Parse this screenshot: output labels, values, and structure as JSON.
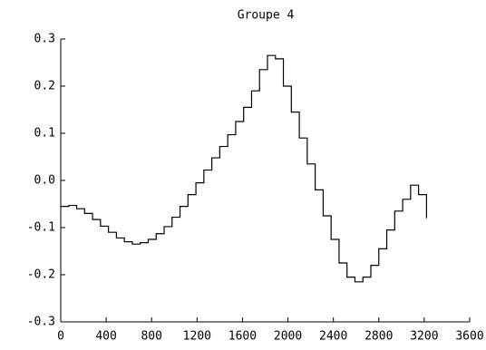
{
  "chart_data": {
    "type": "step",
    "title": "Groupe 4",
    "x": [
      0,
      70,
      140,
      210,
      280,
      350,
      420,
      490,
      560,
      630,
      700,
      770,
      840,
      910,
      980,
      1050,
      1120,
      1190,
      1260,
      1330,
      1400,
      1470,
      1540,
      1610,
      1680,
      1750,
      1820,
      1890,
      1960,
      2030,
      2100,
      2170,
      2240,
      2310,
      2380,
      2450,
      2520,
      2590,
      2660,
      2730,
      2800,
      2870,
      2940,
      3010,
      3080,
      3150,
      3220
    ],
    "values": [
      -0.055,
      -0.053,
      -0.06,
      -0.07,
      -0.083,
      -0.097,
      -0.11,
      -0.122,
      -0.13,
      -0.135,
      -0.132,
      -0.125,
      -0.113,
      -0.098,
      -0.078,
      -0.055,
      -0.03,
      -0.005,
      0.022,
      0.048,
      0.072,
      0.097,
      0.125,
      0.155,
      0.19,
      0.235,
      0.265,
      0.258,
      0.2,
      0.145,
      0.09,
      0.035,
      -0.02,
      -0.075,
      -0.125,
      -0.175,
      -0.205,
      -0.215,
      -0.205,
      -0.18,
      -0.145,
      -0.105,
      -0.065,
      -0.04,
      -0.01,
      -0.03,
      -0.08
    ],
    "color": "#000000",
    "xlim": [
      0,
      3600
    ],
    "xticks": [
      0,
      400,
      800,
      1200,
      1600,
      2000,
      2400,
      2800,
      3200,
      3600
    ],
    "ylim": [
      -0.3,
      0.3
    ],
    "yticks": [
      -0.3,
      -0.2,
      -0.1,
      {
        "value": 0,
        "label": "0.0"
      },
      0.1,
      0.2,
      0.3
    ]
  }
}
